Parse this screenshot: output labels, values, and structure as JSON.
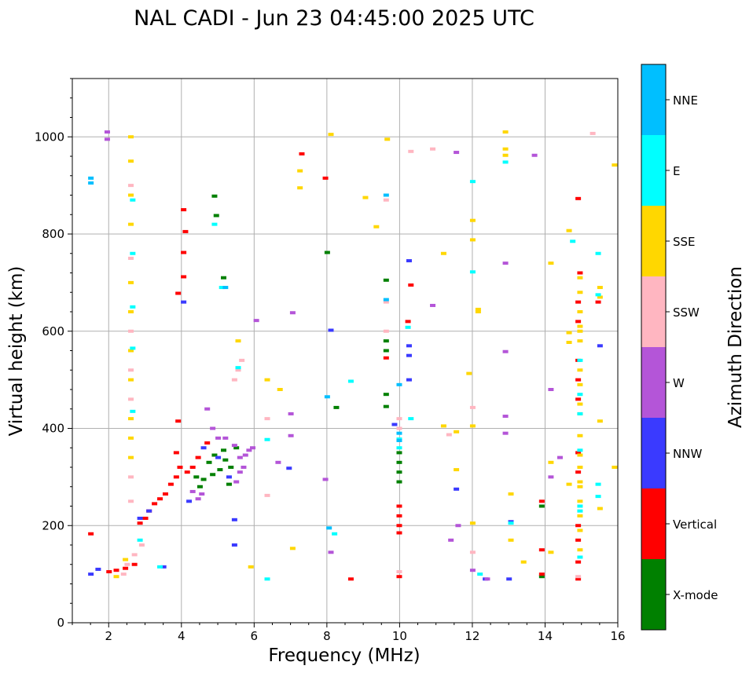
{
  "chart_data": {
    "type": "scatter",
    "title": "NAL CADI - Jun 23 04:45:00 2025 UTC",
    "xlabel": "Frequency (MHz)",
    "ylabel": "Virtual height (km)",
    "xlim": [
      1,
      16
    ],
    "ylim": [
      0,
      1120
    ],
    "xticks": [
      2,
      4,
      6,
      8,
      10,
      12,
      14,
      16
    ],
    "yticks": [
      0,
      200,
      400,
      600,
      800,
      1000
    ],
    "grid": true,
    "colorbar": {
      "label": "Azimuth Direction",
      "categories": [
        "X-mode",
        "Vertical",
        "NNW",
        "W",
        "SSW",
        "SSE",
        "E",
        "NNE"
      ],
      "colors": [
        "#008000",
        "#ff0000",
        "#3a3aff",
        "#b455d8",
        "#ffb6c1",
        "#ffd700",
        "#00ffff",
        "#00bfff"
      ]
    },
    "series": [
      {
        "name": "X-mode",
        "points": [
          [
            4.6,
            295
          ],
          [
            4.75,
            330
          ],
          [
            4.9,
            345
          ],
          [
            5.05,
            315
          ],
          [
            5.2,
            335
          ],
          [
            5.35,
            320
          ],
          [
            5.5,
            360
          ],
          [
            4.4,
            300
          ],
          [
            4.5,
            280
          ],
          [
            4.85,
            305
          ],
          [
            5.15,
            355
          ],
          [
            5.3,
            285
          ],
          [
            9.62,
            705
          ],
          [
            9.62,
            580
          ],
          [
            9.62,
            560
          ],
          [
            9.62,
            470
          ],
          [
            9.62,
            445
          ],
          [
            9.98,
            350
          ],
          [
            9.98,
            330
          ],
          [
            9.98,
            310
          ],
          [
            9.98,
            290
          ],
          [
            13.9,
            95
          ],
          [
            13.9,
            240
          ],
          [
            8.0,
            762
          ],
          [
            8.25,
            443
          ],
          [
            4.9,
            878
          ],
          [
            4.95,
            838
          ],
          [
            5.15,
            710
          ]
        ]
      },
      {
        "name": "Vertical",
        "points": [
          [
            2.0,
            105
          ],
          [
            2.2,
            108
          ],
          [
            2.45,
            112
          ],
          [
            2.7,
            120
          ],
          [
            2.85,
            205
          ],
          [
            3.0,
            215
          ],
          [
            3.1,
            230
          ],
          [
            3.25,
            245
          ],
          [
            3.4,
            255
          ],
          [
            3.55,
            265
          ],
          [
            3.7,
            285
          ],
          [
            3.85,
            300
          ],
          [
            3.95,
            320
          ],
          [
            3.85,
            350
          ],
          [
            4.15,
            310
          ],
          [
            4.3,
            320
          ],
          [
            4.45,
            340
          ],
          [
            4.7,
            370
          ],
          [
            1.5,
            183
          ],
          [
            3.9,
            678
          ],
          [
            4.1,
            805
          ],
          [
            4.05,
            762
          ],
          [
            4.05,
            712
          ],
          [
            4.05,
            850
          ],
          [
            3.9,
            415
          ],
          [
            7.3,
            965
          ],
          [
            7.95,
            915
          ],
          [
            8.65,
            90
          ],
          [
            9.62,
            545
          ],
          [
            9.98,
            240
          ],
          [
            9.98,
            220
          ],
          [
            9.98,
            200
          ],
          [
            9.98,
            185
          ],
          [
            9.98,
            95
          ],
          [
            10.3,
            695
          ],
          [
            10.22,
            620
          ],
          [
            13.9,
            100
          ],
          [
            13.9,
            150
          ],
          [
            13.9,
            250
          ],
          [
            14.9,
            540
          ],
          [
            14.9,
            500
          ],
          [
            14.9,
            460
          ],
          [
            14.9,
            350
          ],
          [
            14.9,
            310
          ],
          [
            14.9,
            200
          ],
          [
            14.9,
            170
          ],
          [
            14.9,
            125
          ],
          [
            14.9,
            90
          ],
          [
            15.45,
            660
          ],
          [
            14.9,
            873
          ],
          [
            14.95,
            720
          ],
          [
            14.9,
            620
          ],
          [
            14.9,
            660
          ]
        ]
      },
      {
        "name": "NNW",
        "points": [
          [
            1.5,
            100
          ],
          [
            1.7,
            110
          ],
          [
            2.85,
            215
          ],
          [
            3.1,
            230
          ],
          [
            3.5,
            115
          ],
          [
            4.2,
            250
          ],
          [
            4.6,
            360
          ],
          [
            5.0,
            340
          ],
          [
            5.3,
            300
          ],
          [
            10.25,
            745
          ],
          [
            10.25,
            570
          ],
          [
            10.25,
            550
          ],
          [
            10.25,
            500
          ],
          [
            9.85,
            408
          ],
          [
            11.55,
            275
          ],
          [
            13.05,
            208
          ],
          [
            13.0,
            90
          ],
          [
            12.35,
            90
          ],
          [
            15.5,
            570
          ],
          [
            5.45,
            212
          ],
          [
            5.45,
            160
          ],
          [
            4.05,
            660
          ],
          [
            8.1,
            602
          ],
          [
            6.95,
            318
          ]
        ]
      },
      {
        "name": "W",
        "points": [
          [
            4.7,
            440
          ],
          [
            4.85,
            400
          ],
          [
            5.0,
            380
          ],
          [
            5.2,
            380
          ],
          [
            5.45,
            365
          ],
          [
            5.6,
            340
          ],
          [
            5.75,
            345
          ],
          [
            5.85,
            355
          ],
          [
            5.95,
            360
          ],
          [
            5.5,
            290
          ],
          [
            5.6,
            310
          ],
          [
            5.7,
            320
          ],
          [
            4.3,
            270
          ],
          [
            4.45,
            255
          ],
          [
            4.55,
            265
          ],
          [
            6.05,
            622
          ],
          [
            7.0,
            430
          ],
          [
            7.0,
            385
          ],
          [
            7.05,
            638
          ],
          [
            10.9,
            653
          ],
          [
            11.55,
            968
          ],
          [
            12.9,
            740
          ],
          [
            12.9,
            558
          ],
          [
            12.9,
            425
          ],
          [
            12.9,
            390
          ],
          [
            13.7,
            962
          ],
          [
            14.15,
            480
          ],
          [
            14.15,
            300
          ],
          [
            14.4,
            340
          ],
          [
            1.95,
            1010
          ],
          [
            1.95,
            995
          ],
          [
            8.1,
            145
          ],
          [
            11.4,
            170
          ],
          [
            11.6,
            200
          ],
          [
            12.0,
            108
          ],
          [
            12.4,
            90
          ],
          [
            6.65,
            330
          ],
          [
            7.95,
            295
          ]
        ]
      },
      {
        "name": "SSW",
        "points": [
          [
            2.6,
            600
          ],
          [
            2.6,
            900
          ],
          [
            2.6,
            750
          ],
          [
            2.6,
            520
          ],
          [
            2.6,
            300
          ],
          [
            2.6,
            460
          ],
          [
            2.6,
            250
          ],
          [
            2.4,
            100
          ],
          [
            2.5,
            120
          ],
          [
            2.7,
            140
          ],
          [
            2.9,
            160
          ],
          [
            5.45,
            500
          ],
          [
            5.55,
            520
          ],
          [
            5.65,
            540
          ],
          [
            6.35,
            420
          ],
          [
            6.35,
            262
          ],
          [
            9.62,
            870
          ],
          [
            9.62,
            660
          ],
          [
            9.62,
            600
          ],
          [
            9.98,
            420
          ],
          [
            9.98,
            400
          ],
          [
            9.98,
            105
          ],
          [
            10.3,
            970
          ],
          [
            10.9,
            975
          ],
          [
            12.0,
            443
          ],
          [
            12.0,
            145
          ],
          [
            15.3,
            1007
          ],
          [
            14.9,
            95
          ],
          [
            11.35,
            387
          ]
        ]
      },
      {
        "name": "SSE",
        "points": [
          [
            2.6,
            1000
          ],
          [
            2.6,
            950
          ],
          [
            2.6,
            880
          ],
          [
            2.6,
            820
          ],
          [
            2.6,
            700
          ],
          [
            2.6,
            640
          ],
          [
            2.6,
            560
          ],
          [
            2.6,
            500
          ],
          [
            2.6,
            420
          ],
          [
            2.6,
            380
          ],
          [
            2.6,
            340
          ],
          [
            2.2,
            95
          ],
          [
            2.45,
            130
          ],
          [
            5.55,
            580
          ],
          [
            6.35,
            500
          ],
          [
            6.7,
            480
          ],
          [
            7.25,
            930
          ],
          [
            7.25,
            895
          ],
          [
            8.1,
            1005
          ],
          [
            9.05,
            875
          ],
          [
            9.35,
            815
          ],
          [
            9.65,
            995
          ],
          [
            11.2,
            760
          ],
          [
            11.2,
            405
          ],
          [
            11.55,
            393
          ],
          [
            11.55,
            315
          ],
          [
            11.9,
            513
          ],
          [
            12.0,
            788
          ],
          [
            12.0,
            828
          ],
          [
            12.0,
            405
          ],
          [
            12.0,
            205
          ],
          [
            12.15,
            645
          ],
          [
            12.15,
            640
          ],
          [
            12.9,
            1010
          ],
          [
            12.9,
            975
          ],
          [
            12.9,
            962
          ],
          [
            13.05,
            265
          ],
          [
            13.05,
            170
          ],
          [
            13.4,
            125
          ],
          [
            14.15,
            740
          ],
          [
            14.15,
            330
          ],
          [
            14.15,
            145
          ],
          [
            14.65,
            807
          ],
          [
            14.65,
            597
          ],
          [
            14.65,
            577
          ],
          [
            14.65,
            285
          ],
          [
            14.95,
            710
          ],
          [
            14.95,
            680
          ],
          [
            14.95,
            640
          ],
          [
            14.95,
            610
          ],
          [
            14.95,
            600
          ],
          [
            14.95,
            580
          ],
          [
            14.95,
            520
          ],
          [
            14.95,
            490
          ],
          [
            14.95,
            450
          ],
          [
            14.95,
            430
          ],
          [
            14.95,
            385
          ],
          [
            14.95,
            345
          ],
          [
            14.95,
            320
          ],
          [
            14.95,
            290
          ],
          [
            14.95,
            280
          ],
          [
            14.95,
            250
          ],
          [
            14.95,
            220
          ],
          [
            14.95,
            190
          ],
          [
            14.95,
            150
          ],
          [
            15.5,
            690
          ],
          [
            15.5,
            670
          ],
          [
            15.5,
            415
          ],
          [
            15.5,
            235
          ],
          [
            15.9,
            942
          ],
          [
            15.9,
            320
          ],
          [
            7.05,
            153
          ],
          [
            5.9,
            115
          ]
        ]
      },
      {
        "name": "E",
        "points": [
          [
            2.65,
            565
          ],
          [
            2.65,
            435
          ],
          [
            2.65,
            650
          ],
          [
            2.65,
            760
          ],
          [
            2.65,
            870
          ],
          [
            4.9,
            820
          ],
          [
            5.1,
            690
          ],
          [
            5.55,
            525
          ],
          [
            6.35,
            377
          ],
          [
            6.35,
            90
          ],
          [
            8.2,
            183
          ],
          [
            8.65,
            497
          ],
          [
            9.98,
            378
          ],
          [
            9.98,
            360
          ],
          [
            10.22,
            608
          ],
          [
            10.3,
            420
          ],
          [
            12.0,
            908
          ],
          [
            12.0,
            722
          ],
          [
            12.2,
            100
          ],
          [
            12.9,
            948
          ],
          [
            13.05,
            205
          ],
          [
            14.75,
            785
          ],
          [
            14.95,
            540
          ],
          [
            14.95,
            470
          ],
          [
            14.95,
            430
          ],
          [
            14.95,
            355
          ],
          [
            14.95,
            240
          ],
          [
            14.95,
            230
          ],
          [
            14.95,
            135
          ],
          [
            15.45,
            760
          ],
          [
            15.45,
            675
          ],
          [
            15.45,
            285
          ],
          [
            15.45,
            260
          ],
          [
            3.4,
            115
          ],
          [
            2.85,
            170
          ]
        ]
      },
      {
        "name": "NNE",
        "points": [
          [
            1.5,
            915
          ],
          [
            1.5,
            905
          ],
          [
            9.98,
            490
          ],
          [
            9.98,
            390
          ],
          [
            9.98,
            375
          ],
          [
            9.62,
            880
          ],
          [
            9.62,
            665
          ],
          [
            8.0,
            465
          ],
          [
            8.05,
            195
          ],
          [
            5.2,
            690
          ]
        ]
      }
    ]
  }
}
